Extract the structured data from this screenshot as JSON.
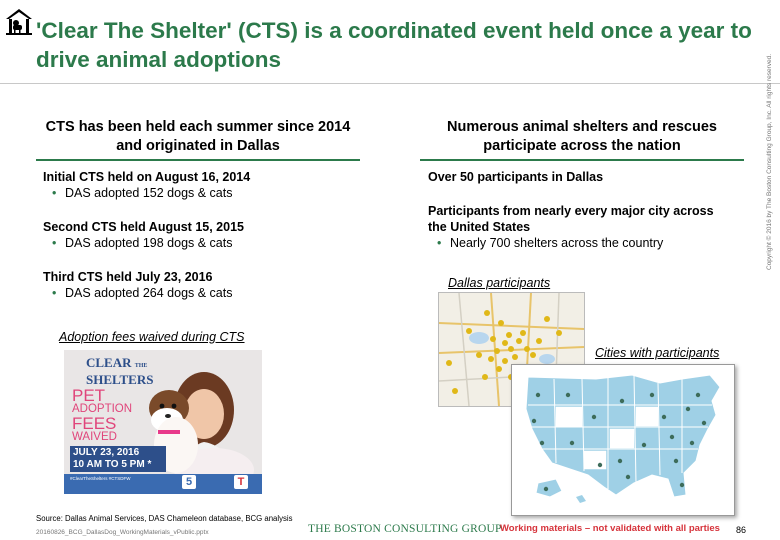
{
  "header": {
    "title": "'Clear The Shelter' (CTS) is a coordinated event held once a year to drive animal adoptions"
  },
  "left": {
    "heading": "CTS has been held each summer since 2014 and originated in Dallas",
    "events": [
      {
        "title": "Initial CTS held on August 16, 2014",
        "detail": "DAS adopted 152 dogs & cats"
      },
      {
        "title": "Second CTS held August 15, 2015",
        "detail": "DAS adopted 198 dogs & cats"
      },
      {
        "title": "Third CTS held July 23, 2016",
        "detail": "DAS adopted 264 dogs & cats"
      }
    ],
    "image_caption": "Adoption fees waived during CTS",
    "poster": {
      "brand_line1": "CLEAR",
      "brand_sub": "THE",
      "brand_line2": "SHELTERS",
      "headline": [
        "PET",
        "ADOPTION",
        "FEES",
        "WAIVED"
      ],
      "date": "JULY 23, 2016",
      "time": "10 AM TO 5 PM *",
      "tags": "#ClearTheShelters   #CTSDFW"
    }
  },
  "right": {
    "heading": "Numerous animal shelters and rescues participate across the nation",
    "point1": "Over 50 participants in Dallas",
    "point2": "Participants from nearly every major city across the United States",
    "bullet": "Nearly 700 shelters across the country",
    "map1_caption": "Dallas participants",
    "map2_caption": "Cities with participants"
  },
  "footer": {
    "source": "Source: Dallas Animal Services, DAS Chameleon database, BCG analysis",
    "filename": "20160826_BCG_DallasDog_WorkingMaterials_vPublic.pptx",
    "brand": "THE BOSTON CONSULTING GROUP",
    "disclaimer": "Working materials – not validated with all parties",
    "page": "86",
    "copyright": "Copyright © 2016 by The Boston Consulting Group, Inc. All rights reserved."
  },
  "colors": {
    "accent": "#2c7a4b",
    "warning": "#d6333b",
    "map_state": "#9fd0e6"
  }
}
